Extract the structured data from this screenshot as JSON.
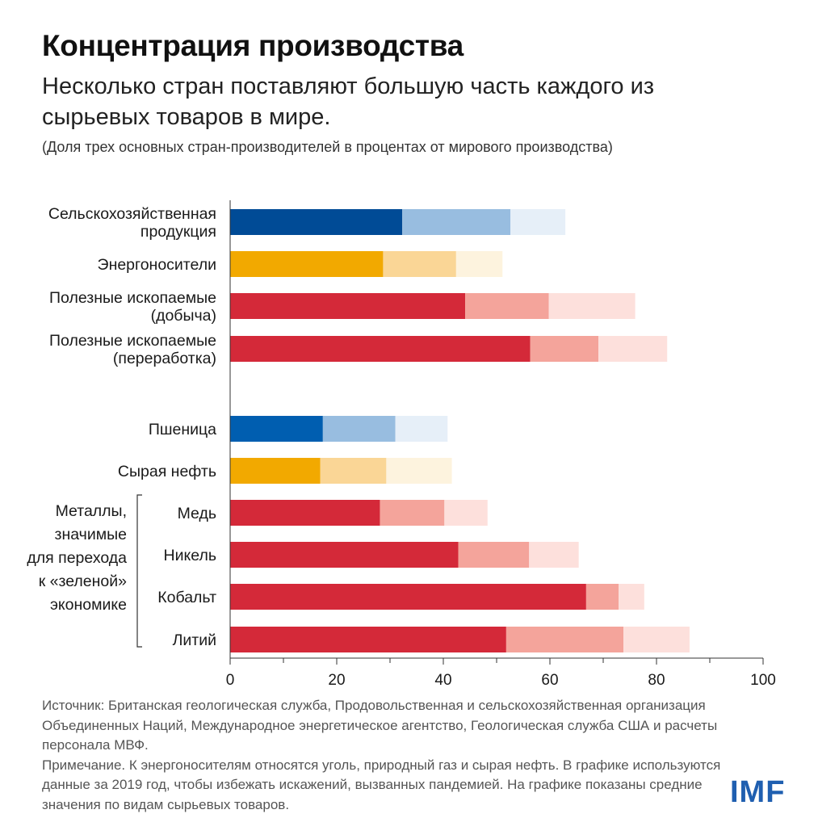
{
  "title": "Концентрация производства",
  "subtitle": "Несколько стран поставляют большую часть каждого из сырьевых товаров в мире.",
  "units_note": "(Доля трех основных стран-производителей в процентах от мирового производства)",
  "chart_data": {
    "type": "bar",
    "orientation": "horizontal",
    "stacked": true,
    "xlim": [
      0,
      100
    ],
    "x_ticks": [
      "0",
      "20",
      "40",
      "60",
      "80",
      "100"
    ],
    "group_label": [
      "Металлы,",
      "значимые",
      "для перехода",
      "к «зеленой»",
      "экономике"
    ],
    "categories": [
      {
        "label": [
          "Сельскохозяйственная",
          "продукция"
        ],
        "values": [
          32.3,
          20.3,
          10.3
        ],
        "palette": "blue"
      },
      {
        "label": [
          "Энергоносители"
        ],
        "values": [
          28.7,
          13.7,
          8.7
        ],
        "palette": "orange"
      },
      {
        "label": [
          "Полезные ископаемые",
          "(добыча)"
        ],
        "values": [
          44.1,
          15.7,
          16.2
        ],
        "palette": "red"
      },
      {
        "label": [
          "Полезные ископаемые",
          "(переработка)"
        ],
        "values": [
          56.3,
          12.8,
          12.9
        ],
        "palette": "red"
      },
      {
        "label": [
          "Пшеница"
        ],
        "values": [
          17.4,
          13.6,
          9.8
        ],
        "palette": "blue"
      },
      {
        "label": [
          "Сырая нефть"
        ],
        "values": [
          16.9,
          12.4,
          12.3
        ],
        "palette": "orange"
      },
      {
        "label": [
          "Медь"
        ],
        "values": [
          28.1,
          12.1,
          8.1
        ],
        "palette": "red"
      },
      {
        "label": [
          "Никель"
        ],
        "values": [
          42.8,
          13.3,
          9.3
        ],
        "palette": "red"
      },
      {
        "label": [
          "Кобальт"
        ],
        "values": [
          66.8,
          6.1,
          4.8
        ],
        "palette": "red"
      },
      {
        "label": [
          "Литий"
        ],
        "values": [
          51.8,
          22.0,
          12.4
        ],
        "palette": "red"
      }
    ],
    "colors": {
      "blue": [
        "#004b96",
        "#98bde0",
        "#e6eff8"
      ],
      "blue_wheat": [
        "#005eb0",
        "#98bde0",
        "#e6eff8"
      ],
      "orange": [
        "#f2a900",
        "#fad696",
        "#fdf3de"
      ],
      "red": [
        "#d42939",
        "#f4a49b",
        "#fde0dc"
      ]
    }
  },
  "footer": {
    "source": "Источник: Британская геологическая служба, Продовольственная и сельскохозяйственная организация Объединенных Наций, Международное энергетическое агентство, Геологическая служба США и расчеты персонала МВФ.",
    "note": "Примечание. К энергоносителям относятся уголь, природный газ и сырая нефть. В графике используются данные за 2019 год, чтобы избежать искажений, вызванных пандемией. На графике показаны средние значения по видам сырьевых товаров."
  },
  "logo": "IMF"
}
